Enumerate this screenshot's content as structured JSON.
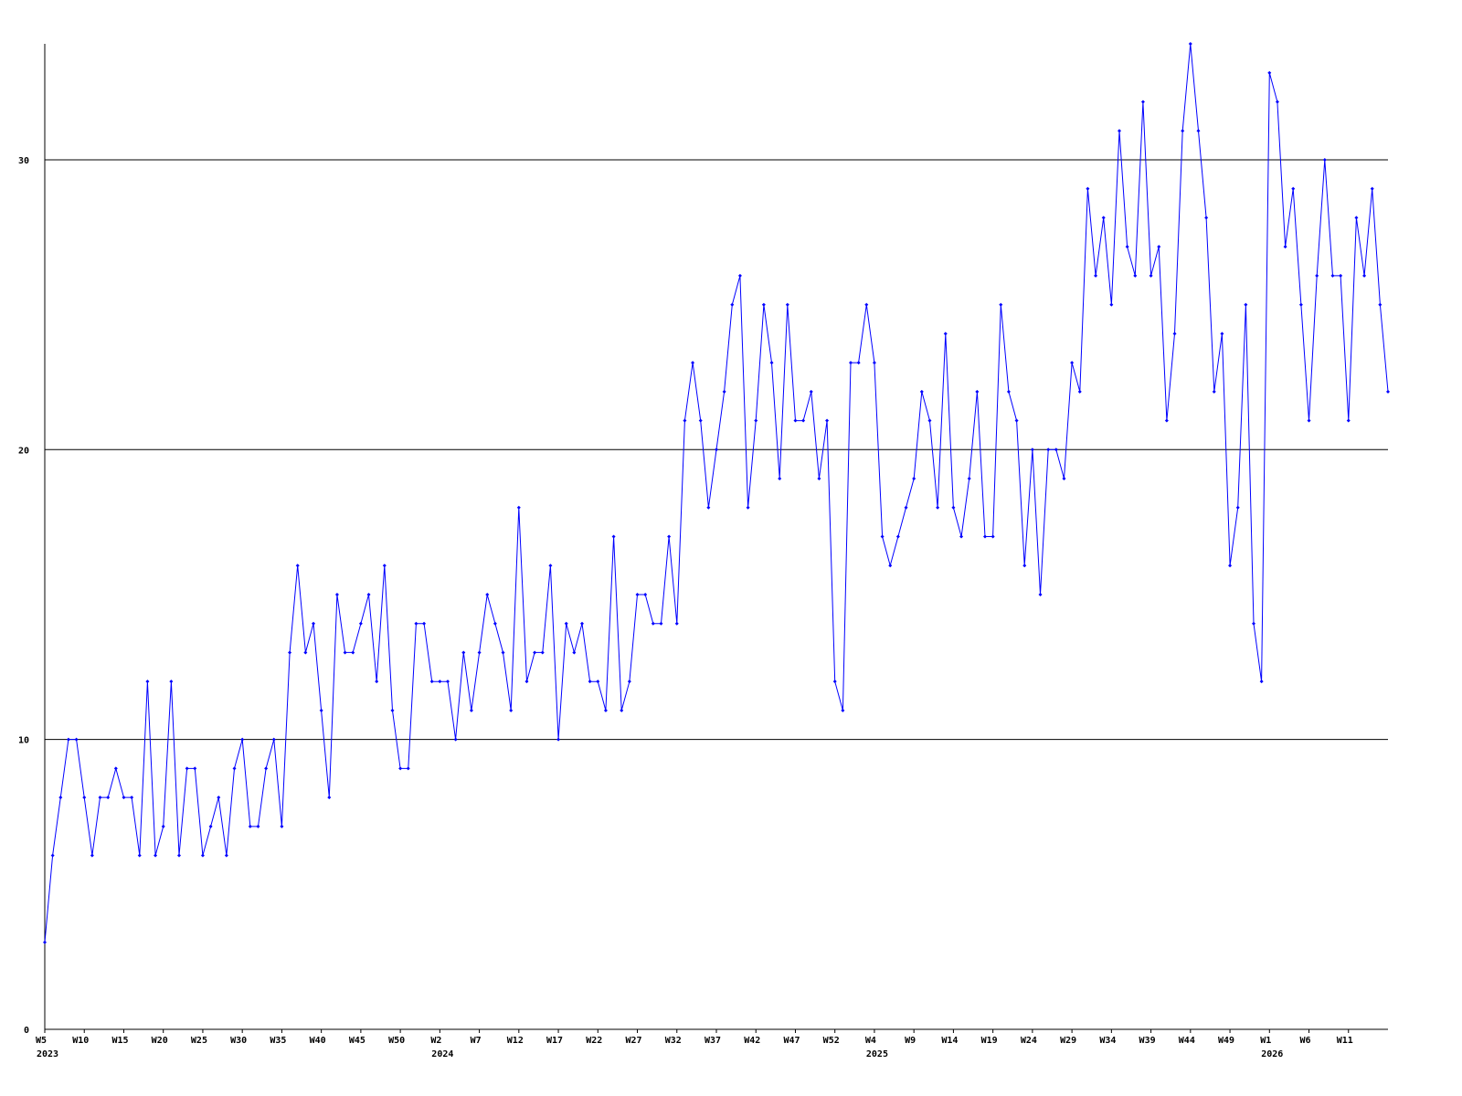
{
  "chart_data": {
    "type": "line",
    "title": "",
    "xlabel": "",
    "ylabel": "",
    "ylim": [
      0,
      34
    ],
    "y_ticks": [
      0,
      10,
      20,
      30
    ],
    "grid": "horizontal at 10, 20, 30",
    "line_color": "#0000ff",
    "values": [
      3,
      6,
      8,
      10,
      10,
      8,
      6,
      8,
      8,
      9,
      8,
      8,
      6,
      12,
      6,
      7,
      12,
      6,
      9,
      9,
      6,
      7,
      8,
      6,
      9,
      10,
      7,
      7,
      9,
      10,
      7,
      13,
      16,
      13,
      14,
      11,
      8,
      15,
      13,
      13,
      14,
      15,
      12,
      16,
      11,
      9,
      9,
      14,
      14,
      12,
      12,
      12,
      10,
      13,
      11,
      13,
      15,
      14,
      13,
      11,
      18,
      12,
      13,
      13,
      16,
      10,
      14,
      13,
      14,
      12,
      12,
      11,
      17,
      11,
      12,
      15,
      15,
      14,
      14,
      17,
      14,
      21,
      23,
      21,
      18,
      20,
      22,
      25,
      26,
      18,
      21,
      25,
      23,
      19,
      25,
      21,
      21,
      22,
      19,
      21,
      12,
      11,
      23,
      23,
      25,
      23,
      17,
      16,
      17,
      18,
      19,
      22,
      21,
      18,
      24,
      18,
      17,
      19,
      22,
      17,
      17,
      25,
      22,
      21,
      16,
      20,
      15,
      20,
      20,
      19,
      23,
      22,
      29,
      26,
      28,
      25,
      31,
      27,
      26,
      32,
      26,
      27,
      21,
      24,
      31,
      34,
      31,
      28,
      22,
      24,
      16,
      18,
      25,
      14,
      12,
      33,
      32,
      27,
      29,
      25,
      21,
      26,
      30,
      26,
      26,
      21,
      28,
      26,
      29,
      25,
      22
    ],
    "x_ticks": [
      {
        "label": "W5",
        "year": "2023"
      },
      {
        "label": "W10"
      },
      {
        "label": "W15"
      },
      {
        "label": "W20"
      },
      {
        "label": "W25"
      },
      {
        "label": "W30"
      },
      {
        "label": "W35"
      },
      {
        "label": "W40"
      },
      {
        "label": "W45"
      },
      {
        "label": "W50"
      },
      {
        "label": "W2",
        "year": "2024"
      },
      {
        "label": "W7"
      },
      {
        "label": "W12"
      },
      {
        "label": "W17"
      },
      {
        "label": "W22"
      },
      {
        "label": "W27"
      },
      {
        "label": "W32"
      },
      {
        "label": "W37"
      },
      {
        "label": "W42"
      },
      {
        "label": "W47"
      },
      {
        "label": "W52"
      },
      {
        "label": "W4",
        "year": "2025"
      },
      {
        "label": "W9"
      },
      {
        "label": "W14"
      },
      {
        "label": "W19"
      },
      {
        "label": "W24"
      },
      {
        "label": "W29"
      },
      {
        "label": "W34"
      },
      {
        "label": "W39"
      },
      {
        "label": "W44"
      },
      {
        "label": "W49"
      },
      {
        "label": "W1",
        "year": "2026"
      },
      {
        "label": "W6"
      },
      {
        "label": "W11"
      }
    ]
  }
}
